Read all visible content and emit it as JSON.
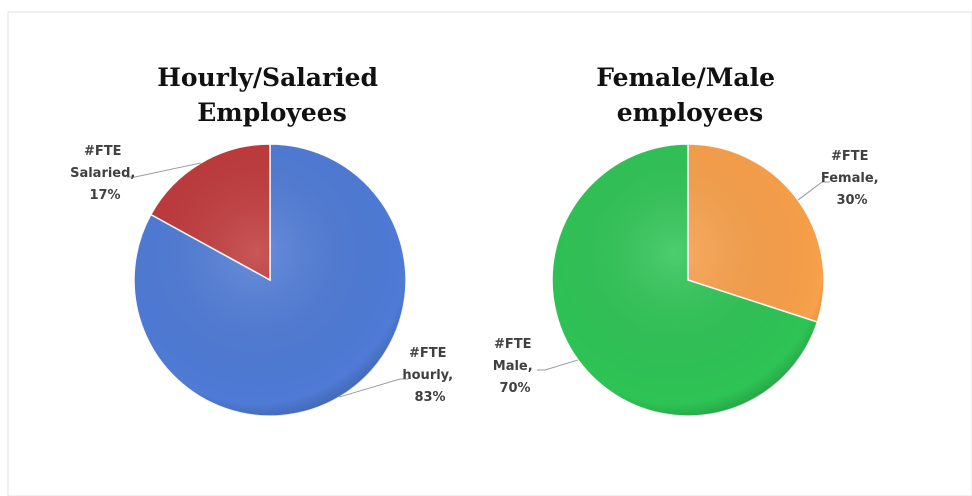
{
  "chart_data": [
    {
      "type": "pie",
      "title": "Hourly/Salaried Employees",
      "categories": [
        "#FTE hourly",
        "#FTE Salaried"
      ],
      "values": [
        83,
        17
      ],
      "value_labels": [
        "#FTE hourly, 83%",
        "#FTE Salaried, 17%"
      ],
      "colors": [
        "#4f7bd6",
        "#c0393b"
      ]
    },
    {
      "type": "pie",
      "title": "Female/Male employees",
      "categories": [
        "#FTE Female",
        "#FTE Male"
      ],
      "values": [
        30,
        70
      ],
      "value_labels": [
        "#FTE Female, 30%",
        "#FTE Male, 70%"
      ],
      "colors": [
        "#f8a04a",
        "#2ec455"
      ]
    }
  ]
}
